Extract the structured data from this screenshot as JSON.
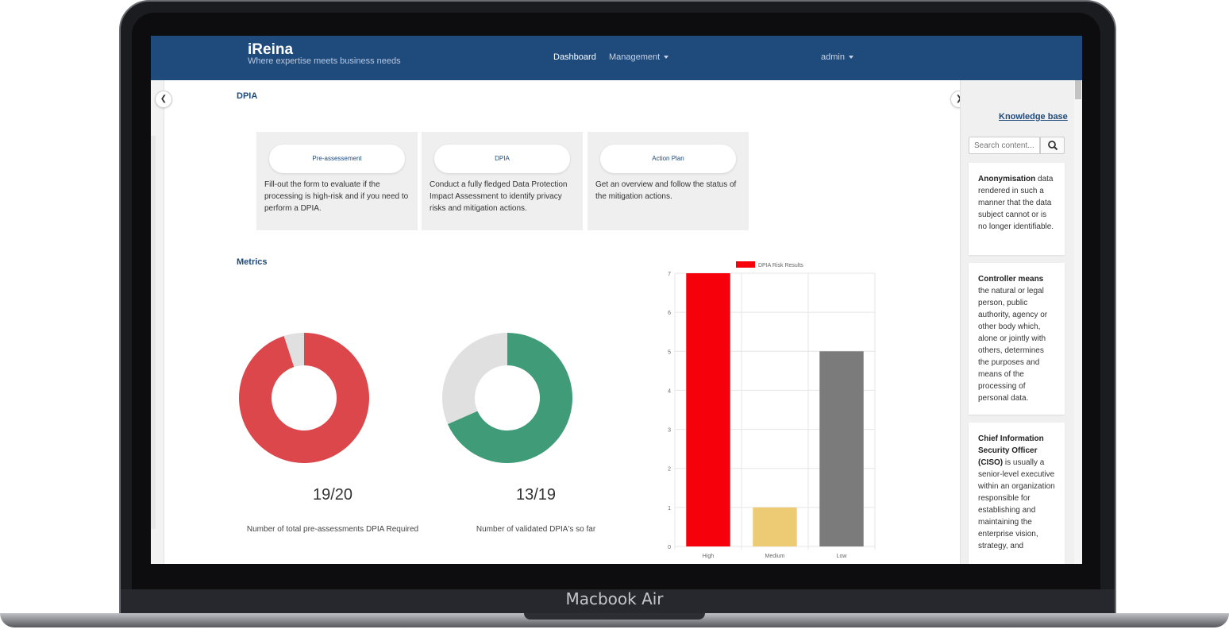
{
  "device": {
    "brand_label": "Macbook Air"
  },
  "navbar": {
    "brand_title": "iReina",
    "brand_tagline": "Where expertise meets business needs",
    "links": [
      {
        "label": "Dashboard",
        "active": true
      },
      {
        "label": "Management",
        "dropdown": true
      }
    ],
    "user_label": "admin"
  },
  "dpia_section": {
    "title": "DPIA"
  },
  "cards": [
    {
      "button_label": "Pre-assessement",
      "description": "Fill-out the form to evaluate if the processing is high-risk and if you need to perform a DPIA."
    },
    {
      "button_label": "DPIA",
      "description": "Conduct a fully fledged Data Protection Impact Assessment to identify privacy risks and mitigation actions."
    },
    {
      "button_label": "Action Plan",
      "description": "Get an overview and follow the status of the mitigation actions."
    }
  ],
  "metrics": {
    "title": "Metrics",
    "donuts": [
      {
        "value_text": "19/20",
        "label": "Number of total pre-assessments DPIA Required",
        "filled": 19,
        "total": 20,
        "color": "#dc474c",
        "rest_color": "#e0e0e0"
      },
      {
        "value_text": "13/19",
        "label": "Number of validated DPIA's so far",
        "filled": 13,
        "total": 19,
        "color": "#3f9b78",
        "rest_color": "#e0e0e0"
      }
    ]
  },
  "chart_data": {
    "type": "bar",
    "categories": [
      "High",
      "Medium",
      "Low"
    ],
    "series": [
      {
        "name": "DPIA Risk Results",
        "values": [
          7,
          1,
          5
        ]
      }
    ],
    "bar_colors": [
      "#f5000b",
      "#edcb75",
      "#7b7b7b"
    ],
    "legend_color": "#f5000b",
    "ylim": [
      0,
      7
    ],
    "yticks": [
      0,
      1,
      2,
      3,
      4,
      5,
      6,
      7
    ],
    "grid": true,
    "legend": "top"
  },
  "knowledge_base": {
    "title": "Knowledge base",
    "search_placeholder": "Search content...",
    "entries": [
      {
        "term": "Anonymisation",
        "definition": "data rendered in such a manner that the data subject cannot or is no longer identifiable."
      },
      {
        "term": "Controller means",
        "definition": "the natural or legal person, public authority, agency or other body which, alone or jointly with others, determines the purposes and means of the processing of personal data."
      },
      {
        "term": "Chief Information Security Officer (CISO)",
        "definition": "is usually a senior-level executive within an organization responsible for establishing and maintaining the enterprise vision, strategy, and"
      }
    ]
  }
}
